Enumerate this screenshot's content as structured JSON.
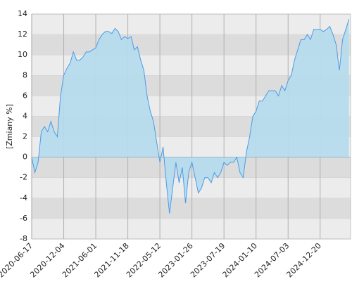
{
  "chart_data": {
    "type": "area",
    "y_label": "[Zmiany %]",
    "categories": [
      "2020-06-17",
      null,
      null,
      null,
      null,
      null,
      null,
      null,
      null,
      null,
      "2020-12-04",
      null,
      null,
      null,
      null,
      null,
      null,
      null,
      null,
      null,
      "2021-06-01",
      null,
      null,
      null,
      null,
      null,
      null,
      null,
      null,
      null,
      "2021-11-18",
      null,
      null,
      null,
      null,
      null,
      null,
      null,
      null,
      null,
      "2022-05-12",
      null,
      null,
      null,
      null,
      null,
      null,
      null,
      null,
      null,
      "2023-01-26",
      null,
      null,
      null,
      null,
      null,
      null,
      null,
      null,
      null,
      "2023-07-19",
      null,
      null,
      null,
      null,
      null,
      null,
      null,
      null,
      null,
      "2024-01-10",
      null,
      null,
      null,
      null,
      null,
      null,
      null,
      null,
      null,
      "2024-07-03",
      null,
      null,
      null,
      null,
      null,
      null,
      null,
      null,
      null,
      "2024-12-20",
      null,
      null,
      null,
      null,
      null,
      null,
      null,
      null,
      null
    ],
    "values": [
      0,
      -1.5,
      -0.5,
      2.5,
      3,
      2.5,
      3.5,
      2.5,
      2,
      6,
      8,
      8.7,
      9.2,
      10.3,
      9.5,
      9.5,
      9.8,
      10.3,
      10.3,
      10.5,
      10.7,
      11.5,
      12,
      12.3,
      12.3,
      12.1,
      12.6,
      12.3,
      11.5,
      11.8,
      11.6,
      11.8,
      10.5,
      10.8,
      9.5,
      8.5,
      6,
      4.5,
      3.5,
      1.5,
      -0.5,
      1,
      -2.5,
      -5.5,
      -3,
      -0.5,
      -2.5,
      -1,
      -4.5,
      -1.5,
      -0.5,
      -2,
      -3.5,
      -3,
      -2,
      -2,
      -2.5,
      -1.5,
      -2,
      -1.5,
      -0.5,
      -0.8,
      -0.5,
      -0.5,
      0,
      -1.5,
      -2,
      0.5,
      2,
      4,
      4.5,
      5.5,
      5.5,
      6,
      6.5,
      6.5,
      6.5,
      6,
      7,
      6.5,
      7.5,
      8,
      9.5,
      10.5,
      11.5,
      11.5,
      12,
      11.5,
      12.5,
      12.5,
      12.5,
      12.3,
      12.5,
      12.8,
      12,
      11,
      8.5,
      11.5,
      12.5,
      13.5
    ],
    "color": "#4a9be8",
    "fill": "#b5dced",
    "ylim": [
      -8,
      14
    ],
    "yticks": [
      -8,
      -6,
      -4,
      -2,
      0,
      2,
      4,
      6,
      8,
      10,
      12,
      14
    ],
    "grid": true
  }
}
